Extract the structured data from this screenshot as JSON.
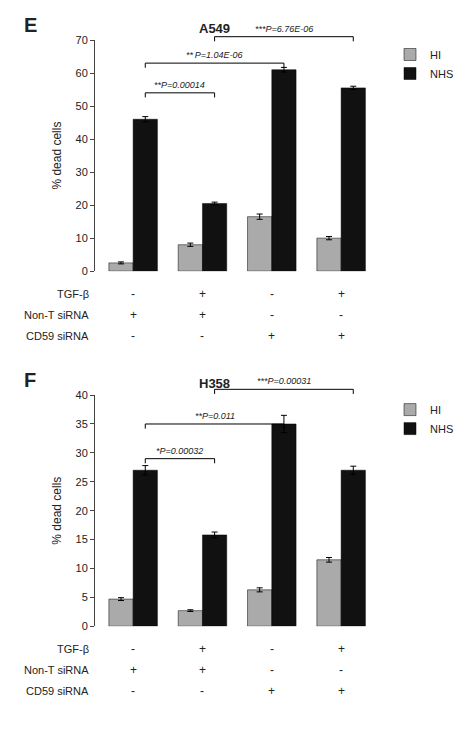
{
  "chart_data": [
    {
      "type": "bar",
      "title": "A549",
      "panel_label": "E",
      "ylabel": "% dead cells",
      "categories": [
        null,
        null,
        null,
        null
      ],
      "series": [
        {
          "name": "HI",
          "color": "#aaaaaa",
          "values": [
            2.5,
            8.0,
            16.5,
            10.0
          ],
          "errors": [
            0.3,
            0.5,
            0.8,
            0.5
          ]
        },
        {
          "name": "NHS",
          "color": "#111111",
          "values": [
            46.0,
            20.5,
            61.0,
            55.5
          ],
          "errors": [
            0.8,
            0.4,
            0.7,
            0.5
          ]
        }
      ],
      "ylim": [
        0,
        70
      ],
      "yticks": [
        0,
        10,
        20,
        30,
        40,
        50,
        60,
        70
      ],
      "grid": false,
      "legend": "upper right",
      "tick_labels": "y",
      "brackets": [
        {
          "groups": [
            0,
            1
          ],
          "y": 54,
          "label": "**P=0.00014"
        },
        {
          "groups": [
            0,
            2
          ],
          "y": 63,
          "label": "** P=1.04E-06"
        },
        {
          "groups": [
            1,
            3
          ],
          "y": 71,
          "label": "***P=6.76E-06"
        }
      ],
      "rows": [
        {
          "label": "TGF-β",
          "symbols": [
            "-",
            "+",
            "-",
            "+"
          ]
        },
        {
          "label": "Non-T siRNA",
          "symbols": [
            "+",
            "+",
            "-",
            "-"
          ]
        },
        {
          "label": "CD59 siRNA",
          "symbols": [
            "-",
            "-",
            "+",
            "+"
          ]
        }
      ]
    },
    {
      "type": "bar",
      "title": "H358",
      "panel_label": "F",
      "ylabel": "% dead cells",
      "categories": [
        null,
        null,
        null,
        null
      ],
      "series": [
        {
          "name": "HI",
          "color": "#aaaaaa",
          "values": [
            4.7,
            2.7,
            6.3,
            11.5
          ],
          "errors": [
            0.25,
            0.15,
            0.35,
            0.4
          ]
        },
        {
          "name": "NHS",
          "color": "#111111",
          "values": [
            27.0,
            15.8,
            35.0,
            27.0
          ],
          "errors": [
            0.8,
            0.5,
            1.5,
            0.7
          ]
        }
      ],
      "ylim": [
        0,
        40
      ],
      "yticks": [
        0,
        5,
        10,
        15,
        20,
        25,
        30,
        35,
        40
      ],
      "grid": false,
      "legend": "upper right",
      "tick_labels": "y",
      "brackets": [
        {
          "groups": [
            0,
            1
          ],
          "y": 29,
          "label": "*P=0.00032"
        },
        {
          "groups": [
            0,
            2
          ],
          "y": 35,
          "label": "**P=0.011"
        },
        {
          "groups": [
            1,
            3
          ],
          "y": 41,
          "label": "***P=0.00031"
        }
      ],
      "rows": [
        {
          "label": "TGF-β",
          "symbols": [
            "-",
            "+",
            "-",
            "+"
          ]
        },
        {
          "label": "Non-T siRNA",
          "symbols": [
            "+",
            "+",
            "-",
            "-"
          ]
        },
        {
          "label": "CD59 siRNA",
          "symbols": [
            "-",
            "-",
            "+",
            "+"
          ]
        }
      ]
    }
  ]
}
